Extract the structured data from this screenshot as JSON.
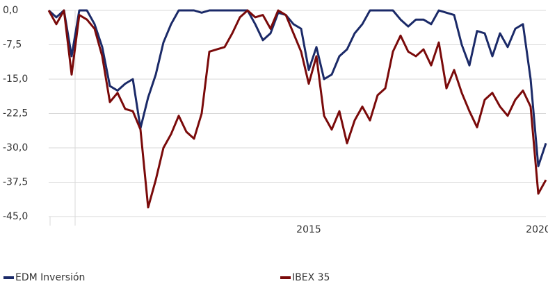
{
  "chart_data": {
    "type": "line",
    "categories": [
      null,
      null,
      null,
      null,
      null,
      null,
      null,
      null,
      null,
      null,
      null,
      null,
      null,
      null,
      null,
      null,
      null,
      null,
      null,
      null,
      null,
      null,
      null,
      null,
      null,
      null,
      null,
      null,
      null,
      null,
      null,
      null,
      null,
      null,
      "2015",
      null,
      null,
      null,
      null,
      null,
      null,
      null,
      null,
      null,
      null,
      null,
      null,
      null,
      null,
      null,
      null,
      null,
      null,
      null,
      null,
      null,
      null,
      null,
      null,
      null,
      null,
      null,
      null,
      null,
      "2020",
      null
    ],
    "series": [
      {
        "name": "EDM Inversión",
        "color": "#1b2a68",
        "values": [
          0,
          -1.5,
          0,
          -10,
          0,
          0,
          -3,
          -8,
          -16.5,
          -17.5,
          -16,
          -15,
          -25.7,
          -19,
          -14,
          -7,
          -3,
          0,
          0,
          0,
          -0.5,
          0,
          0,
          0,
          0,
          0,
          0,
          -3,
          -6.5,
          -5,
          -0.5,
          -1,
          -3,
          -4,
          -13,
          -8,
          -15,
          -14,
          -10,
          -8.5,
          -5,
          -3,
          0,
          0,
          0,
          0,
          -2,
          -3.5,
          -2,
          -2,
          -3,
          0,
          -0.5,
          -1,
          -7.5,
          -12,
          -4.5,
          -5,
          -10,
          -5,
          -8,
          -4,
          -3,
          -15,
          -34,
          -29
        ]
      },
      {
        "name": "IBEX 35",
        "color": "#7a0a0a",
        "values": [
          0,
          -3,
          0,
          -14,
          -1,
          -2,
          -4,
          -10,
          -20,
          -18,
          -21.5,
          -22,
          -26,
          -43,
          -37,
          -30,
          -27,
          -23,
          -26.5,
          -28,
          -22.5,
          -9,
          -8.5,
          -8,
          -5,
          -1.5,
          0,
          -1.5,
          -1,
          -4,
          0,
          -1,
          -5,
          -9,
          -16,
          -10,
          -23,
          -26,
          -22,
          -29,
          -24,
          -21,
          -24,
          -18.5,
          -17,
          -9,
          -5.5,
          -9,
          -10,
          -8.5,
          -12,
          -7,
          -17,
          -13,
          -18,
          -22,
          -25.5,
          -19.5,
          -18,
          -21,
          -23,
          -19.5,
          -17.5,
          -21,
          -40,
          -37
        ]
      }
    ],
    "ylim": [
      -45,
      0
    ],
    "yticks": [
      {
        "value": 0,
        "label": "0,0"
      },
      {
        "value": -7.5,
        "label": "-7,5"
      },
      {
        "value": -15,
        "label": "-15,0"
      },
      {
        "value": -22.5,
        "label": "-22,5"
      },
      {
        "value": -30,
        "label": "-30,0"
      },
      {
        "value": -37.5,
        "label": "-37,5"
      },
      {
        "value": -45,
        "label": "-45,0"
      }
    ],
    "grid": true
  }
}
